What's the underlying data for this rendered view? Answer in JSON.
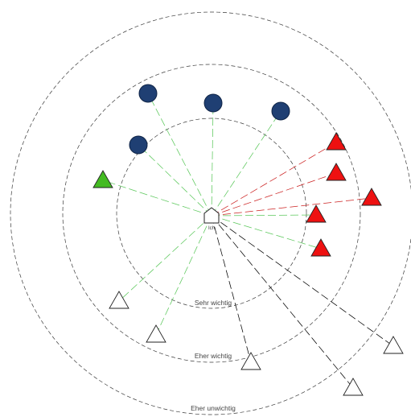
{
  "ego": {
    "label": "Ich"
  },
  "rings": [
    {
      "label": "Sehr wichtig"
    },
    {
      "label": "Eher wichtig"
    },
    {
      "label": "Eher unwichtig"
    }
  ],
  "colors": {
    "tie_green": "#5cc85c",
    "tie_red": "#cc2222",
    "tie_black": "#000000",
    "circle_fill": "#1f3f73",
    "red_triangle": "#ee1111",
    "green_triangle": "#44bb22",
    "white_triangle": "#ffffff",
    "ring_stroke": "#3a3a3a"
  },
  "alters": [
    {
      "id": "circle-1",
      "shape": "circle",
      "fill": "#1f3f73",
      "tie": "#5cc85c"
    },
    {
      "id": "circle-2",
      "shape": "circle",
      "fill": "#1f3f73",
      "tie": "#5cc85c"
    },
    {
      "id": "circle-3",
      "shape": "circle",
      "fill": "#1f3f73",
      "tie": "#5cc85c"
    },
    {
      "id": "circle-4",
      "shape": "circle",
      "fill": "#1f3f73",
      "tie": "#5cc85c"
    },
    {
      "id": "green-triangle",
      "shape": "triangle",
      "fill": "#44bb22",
      "tie": "#5cc85c"
    },
    {
      "id": "red-triangle-1",
      "shape": "triangle",
      "fill": "#ee1111",
      "tie": "#cc2222"
    },
    {
      "id": "red-triangle-2",
      "shape": "triangle",
      "fill": "#ee1111",
      "tie": "#cc2222"
    },
    {
      "id": "red-triangle-3",
      "shape": "triangle",
      "fill": "#ee1111",
      "tie": "#cc2222"
    },
    {
      "id": "red-triangle-4",
      "shape": "triangle",
      "fill": "#ee1111",
      "tie": "#5cc85c"
    },
    {
      "id": "red-triangle-5",
      "shape": "triangle",
      "fill": "#ee1111",
      "tie": "#5cc85c"
    },
    {
      "id": "white-triangle-1",
      "shape": "triangle",
      "fill": "#ffffff",
      "tie": "#5cc85c"
    },
    {
      "id": "white-triangle-2",
      "shape": "triangle",
      "fill": "#ffffff",
      "tie": "#5cc85c"
    },
    {
      "id": "white-triangle-3",
      "shape": "triangle",
      "fill": "#ffffff",
      "tie": "#000000"
    },
    {
      "id": "white-triangle-4",
      "shape": "triangle",
      "fill": "#ffffff",
      "tie": "#000000"
    },
    {
      "id": "white-triangle-5",
      "shape": "triangle",
      "fill": "#ffffff",
      "tie": "#000000"
    }
  ]
}
